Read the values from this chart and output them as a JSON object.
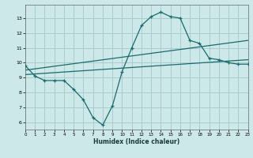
{
  "title": "",
  "xlabel": "Humidex (Indice chaleur)",
  "bg_color": "#cce8e8",
  "grid_color": "#aacccc",
  "line_color": "#1a6b6b",
  "x_values": [
    0,
    1,
    2,
    3,
    4,
    5,
    6,
    7,
    8,
    9,
    10,
    11,
    12,
    13,
    14,
    15,
    16,
    17,
    18,
    19,
    20,
    21,
    22,
    23
  ],
  "curve1": [
    9.8,
    9.1,
    8.8,
    8.8,
    8.8,
    8.2,
    7.5,
    6.3,
    5.8,
    7.1,
    9.4,
    11.0,
    12.5,
    13.1,
    13.4,
    13.1,
    13.0,
    11.5,
    11.3,
    10.3,
    10.2,
    10.0,
    9.9,
    9.9
  ],
  "line2_x": [
    0,
    23
  ],
  "line2_y": [
    9.5,
    11.5
  ],
  "line3_x": [
    0,
    23
  ],
  "line3_y": [
    9.2,
    10.2
  ],
  "xlim": [
    0,
    23
  ],
  "ylim": [
    5.5,
    13.9
  ],
  "yticks": [
    6,
    7,
    8,
    9,
    10,
    11,
    12,
    13
  ],
  "xticks": [
    0,
    1,
    2,
    3,
    4,
    5,
    6,
    7,
    8,
    9,
    10,
    11,
    12,
    13,
    14,
    15,
    16,
    17,
    18,
    19,
    20,
    21,
    22,
    23
  ]
}
